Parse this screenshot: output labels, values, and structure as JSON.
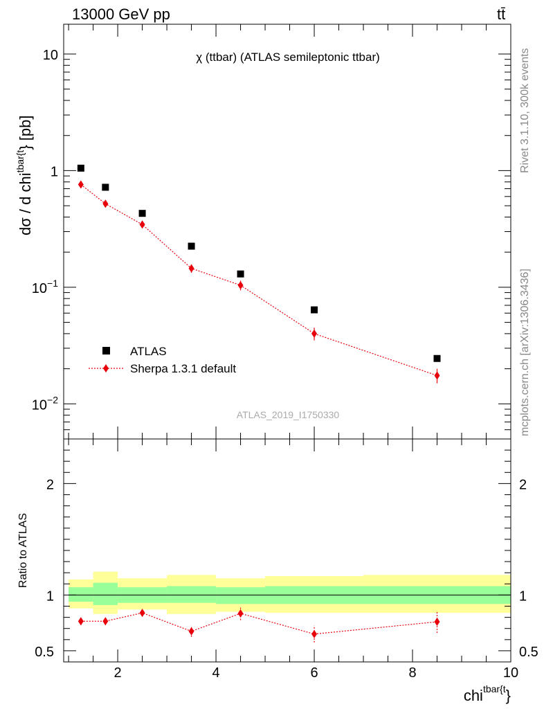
{
  "header": {
    "energy_label": "13000 GeV pp",
    "process_label": "tt̄"
  },
  "side_labels": {
    "rivet": "Rivet 3.1.10,  300k events",
    "mcplots": "mcplots.cern.ch [arXiv:1306.3436]"
  },
  "chart_data": [
    {
      "type": "scatter",
      "panel": "main",
      "title": "χ (ttbar) (ATLAS semileptonic ttbar)",
      "ylabel": "dσ / d chi^{tbar{t}} [pb]",
      "xlabel": "",
      "yscale": "log",
      "xlim": [
        0.9,
        10.0
      ],
      "ylim": [
        0.005,
        18
      ],
      "yticks": [
        {
          "value": 0.01,
          "label": "10^-2"
        },
        {
          "value": 0.1,
          "label": "10^-1"
        },
        {
          "value": 1,
          "label": "1"
        },
        {
          "value": 10,
          "label": "10"
        }
      ],
      "watermark": "ATLAS_2019_I1750330",
      "legend_position": "bottom-left",
      "series": [
        {
          "name": "ATLAS",
          "color": "#000000",
          "marker": "square",
          "x": [
            1.25,
            1.75,
            2.5,
            3.5,
            4.5,
            6.0,
            8.5
          ],
          "y": [
            1.05,
            0.72,
            0.43,
            0.225,
            0.13,
            0.064,
            0.0245
          ]
        },
        {
          "name": "Sherpa 1.3.1 default",
          "color": "#e8000b",
          "marker": "diamond",
          "line": "dotted",
          "x": [
            1.25,
            1.75,
            2.5,
            3.5,
            4.5,
            6.0,
            8.5
          ],
          "y": [
            0.76,
            0.52,
            0.345,
            0.145,
            0.104,
            0.04,
            0.0175
          ],
          "yerr_low": [
            0.035,
            0.025,
            0.02,
            0.012,
            0.01,
            0.005,
            0.0025
          ],
          "yerr_high": [
            0.035,
            0.025,
            0.02,
            0.012,
            0.01,
            0.005,
            0.0025
          ]
        }
      ]
    },
    {
      "type": "scatter",
      "panel": "ratio",
      "ylabel": "Ratio to ATLAS",
      "xlabel": "chi^{tbar{t}}",
      "xlim": [
        0.9,
        10.0
      ],
      "ylim": [
        0.4,
        2.4
      ],
      "xticks": [
        2,
        4,
        6,
        8,
        10
      ],
      "yticks": [
        0.5,
        1,
        2
      ],
      "bins": [
        1.0,
        1.5,
        2.0,
        3.0,
        4.0,
        5.0,
        7.0,
        10.0
      ],
      "band_stat": [
        {
          "lo": 0.94,
          "hi": 1.07
        },
        {
          "lo": 0.91,
          "hi": 1.11
        },
        {
          "lo": 0.93,
          "hi": 1.07
        },
        {
          "lo": 0.93,
          "hi": 1.08
        },
        {
          "lo": 0.92,
          "hi": 1.07
        },
        {
          "lo": 0.92,
          "hi": 1.08
        },
        {
          "lo": 0.92,
          "hi": 1.08
        }
      ],
      "band_total": [
        {
          "lo": 0.88,
          "hi": 1.14
        },
        {
          "lo": 0.83,
          "hi": 1.21
        },
        {
          "lo": 0.87,
          "hi": 1.15
        },
        {
          "lo": 0.83,
          "hi": 1.18
        },
        {
          "lo": 0.85,
          "hi": 1.15
        },
        {
          "lo": 0.84,
          "hi": 1.17
        },
        {
          "lo": 0.84,
          "hi": 1.18
        }
      ],
      "stat_color": "#99ff99",
      "total_color": "#ffff99",
      "series": [
        {
          "name": "Sherpa 1.3.1 default",
          "color": "#e8000b",
          "x": [
            1.25,
            1.75,
            2.5,
            3.5,
            4.5,
            6.0,
            8.5
          ],
          "y": [
            0.765,
            0.765,
            0.84,
            0.675,
            0.835,
            0.65,
            0.76
          ],
          "yerr_low": [
            0.035,
            0.035,
            0.03,
            0.05,
            0.06,
            0.075,
            0.1
          ],
          "yerr_high": [
            0.035,
            0.035,
            0.03,
            0.05,
            0.06,
            0.075,
            0.1
          ]
        }
      ]
    }
  ]
}
